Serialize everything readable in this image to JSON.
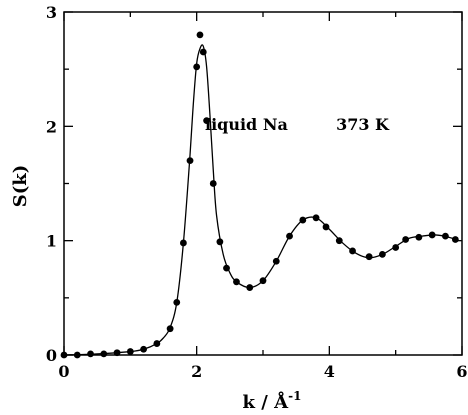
{
  "chart_data": {
    "type": "scatter",
    "title": "",
    "xlabel": "k / Å",
    "xlabel_sup": "-1",
    "ylabel": "S(k)",
    "xlim": [
      0,
      6
    ],
    "ylim": [
      0,
      3
    ],
    "xticks": [
      "0",
      "2",
      "4",
      "6"
    ],
    "yticks": [
      "0",
      "1",
      "2",
      "3"
    ],
    "grid": false,
    "annotations": [
      {
        "text": "liquid Na",
        "x": 2.75,
        "y": 1.97
      },
      {
        "text": "373 K",
        "x": 4.5,
        "y": 1.97
      }
    ],
    "series": [
      {
        "style": "points",
        "x": [
          0.0,
          0.2,
          0.4,
          0.6,
          0.8,
          1.0,
          1.2,
          1.4,
          1.6,
          1.7,
          1.8,
          1.9,
          2.0,
          2.05,
          2.1,
          2.15,
          2.25,
          2.35,
          2.45,
          2.6,
          2.8,
          3.0,
          3.2,
          3.4,
          3.6,
          3.8,
          3.95,
          4.15,
          4.35,
          4.6,
          4.8,
          5.0,
          5.15,
          5.35,
          5.55,
          5.75,
          5.9
        ],
        "y": [
          0.0,
          0.0,
          0.01,
          0.01,
          0.02,
          0.03,
          0.05,
          0.1,
          0.23,
          0.46,
          0.98,
          1.7,
          2.52,
          2.8,
          2.65,
          2.05,
          1.5,
          0.99,
          0.76,
          0.64,
          0.59,
          0.65,
          0.82,
          1.04,
          1.18,
          1.2,
          1.12,
          1.0,
          0.91,
          0.86,
          0.88,
          0.94,
          1.01,
          1.03,
          1.05,
          1.04,
          1.01
        ]
      },
      {
        "style": "line",
        "x": [
          0.0,
          0.5,
          1.0,
          1.2,
          1.4,
          1.5,
          1.6,
          1.7,
          1.8,
          1.9,
          1.95,
          2.0,
          2.05,
          2.1,
          2.15,
          2.2,
          2.25,
          2.3,
          2.4,
          2.5,
          2.6,
          2.8,
          3.0,
          3.2,
          3.4,
          3.6,
          3.8,
          4.0,
          4.2,
          4.4,
          4.6,
          4.8,
          5.0,
          5.2,
          5.4,
          5.6,
          5.8,
          5.95
        ],
        "y": [
          0.0,
          0.01,
          0.03,
          0.05,
          0.1,
          0.15,
          0.24,
          0.46,
          0.98,
          1.75,
          2.2,
          2.55,
          2.68,
          2.7,
          2.52,
          2.1,
          1.62,
          1.22,
          0.88,
          0.72,
          0.64,
          0.59,
          0.65,
          0.82,
          1.04,
          1.18,
          1.2,
          1.1,
          0.98,
          0.89,
          0.85,
          0.88,
          0.95,
          1.02,
          1.04,
          1.05,
          1.03,
          1.0
        ]
      }
    ]
  }
}
